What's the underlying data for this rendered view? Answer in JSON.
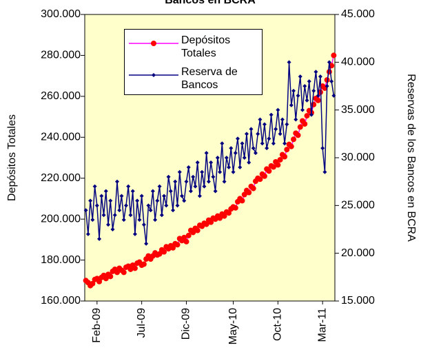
{
  "chart_data": {
    "type": "line",
    "title": "Bancos en BCRA",
    "y_label": "Depósitos Totales",
    "y2_label": "Reservas de los Bancos en BCRA",
    "background": "#ffffcc",
    "categories": [
      null,
      null,
      null,
      null,
      null,
      "Feb-09",
      null,
      null,
      null,
      null,
      null,
      null,
      null,
      null,
      null,
      null,
      null,
      null,
      null,
      null,
      null,
      null,
      null,
      null,
      null,
      "Jul-09",
      null,
      null,
      null,
      null,
      null,
      null,
      null,
      null,
      null,
      null,
      null,
      null,
      null,
      null,
      null,
      null,
      null,
      null,
      null,
      "Dic-09",
      null,
      null,
      null,
      null,
      null,
      null,
      null,
      null,
      null,
      null,
      null,
      null,
      null,
      null,
      null,
      null,
      null,
      null,
      null,
      null,
      "May-10",
      null,
      null,
      null,
      null,
      null,
      null,
      null,
      null,
      null,
      null,
      null,
      null,
      null,
      null,
      null,
      null,
      null,
      null,
      null,
      "Oct-10",
      null,
      null,
      null,
      null,
      null,
      null,
      null,
      null,
      null,
      null,
      null,
      null,
      null,
      null,
      null,
      null,
      null,
      null,
      null,
      "Mar-11",
      null,
      null,
      null,
      null,
      null
    ],
    "ylim": [
      160000,
      300000
    ],
    "yticks": [
      {
        "value": 160000,
        "label": "160.000"
      },
      {
        "value": 180000,
        "label": "180.000"
      },
      {
        "value": 200000,
        "label": "200.000"
      },
      {
        "value": 220000,
        "label": "220.000"
      },
      {
        "value": 240000,
        "label": "240.000"
      },
      {
        "value": 260000,
        "label": "260.000"
      },
      {
        "value": 280000,
        "label": "280.000"
      },
      {
        "value": 300000,
        "label": "300.000"
      }
    ],
    "y2lim": [
      15000,
      45000
    ],
    "y2ticks": [
      {
        "value": 15000,
        "label": "15.000"
      },
      {
        "value": 20000,
        "label": "20.000"
      },
      {
        "value": 25000,
        "label": "25.000"
      },
      {
        "value": 30000,
        "label": "30.000"
      },
      {
        "value": 35000,
        "label": "35.000"
      },
      {
        "value": 40000,
        "label": "40.000"
      },
      {
        "value": 45000,
        "label": "45.000"
      }
    ],
    "series": [
      {
        "name": "Depósitos Totales",
        "color": "#ff00ff",
        "marker_color": "#ff0000",
        "marker": "circle",
        "values": [
          170000,
          169000,
          167500,
          168500,
          170500,
          171000,
          169500,
          171500,
          172500,
          171000,
          173000,
          172000,
          174500,
          175500,
          174000,
          176000,
          175000,
          174000,
          176500,
          177000,
          175500,
          177500,
          176000,
          178500,
          179000,
          177500,
          178000,
          180500,
          182000,
          180500,
          182000,
          183500,
          182500,
          183000,
          185000,
          184000,
          186500,
          185500,
          187000,
          186000,
          188000,
          187500,
          190500,
          189500,
          191000,
          189000,
          192000,
          194500,
          193500,
          195500,
          194500,
          197000,
          196500,
          198000,
          197500,
          199500,
          198500,
          200500,
          200000,
          201500,
          200500,
          202500,
          201500,
          203500,
          203000,
          205000,
          206000,
          205500,
          208500,
          210000,
          209000,
          212000,
          214000,
          213000,
          216000,
          215000,
          218500,
          220000,
          219500,
          222000,
          221000,
          224500,
          223500,
          226000,
          225500,
          228000,
          226500,
          229000,
          231500,
          230500,
          234000,
          236500,
          235500,
          239000,
          242000,
          241000,
          245000,
          248000,
          246500,
          250500,
          253000,
          252000,
          256000,
          259000,
          258000,
          262000,
          265000,
          264000,
          268000,
          272000,
          275000,
          280000
        ]
      },
      {
        "name": "Reserva de Bancos",
        "color": "#000080",
        "marker_color": "#000080",
        "marker": "diamond",
        "axis": "y2",
        "values": [
          24500,
          22000,
          25500,
          23500,
          27000,
          25000,
          21500,
          26000,
          24000,
          26500,
          23000,
          25500,
          22500,
          24000,
          27500,
          24500,
          26000,
          23500,
          25000,
          27000,
          24000,
          26500,
          22000,
          25500,
          23500,
          26000,
          23000,
          21000,
          25000,
          24500,
          26500,
          23500,
          25500,
          27000,
          24000,
          26000,
          25000,
          28000,
          26500,
          24500,
          27500,
          25000,
          28500,
          26000,
          25500,
          27500,
          29000,
          26500,
          28000,
          27000,
          29500,
          26000,
          28500,
          27000,
          30500,
          27500,
          29500,
          28000,
          26500,
          30000,
          28500,
          31500,
          27500,
          30000,
          29000,
          31000,
          28500,
          30500,
          32000,
          29000,
          31500,
          30000,
          32500,
          29500,
          33000,
          31000,
          30500,
          32500,
          34000,
          31500,
          33500,
          31000,
          32000,
          34500,
          31500,
          33000,
          35000,
          32500,
          34000,
          31500,
          33500,
          40000,
          35500,
          37000,
          34000,
          36500,
          38500,
          35000,
          37500,
          36000,
          38000,
          34500,
          37000,
          39000,
          36500,
          38500,
          31000,
          28500,
          37500,
          40000,
          38000,
          36500
        ]
      }
    ]
  }
}
